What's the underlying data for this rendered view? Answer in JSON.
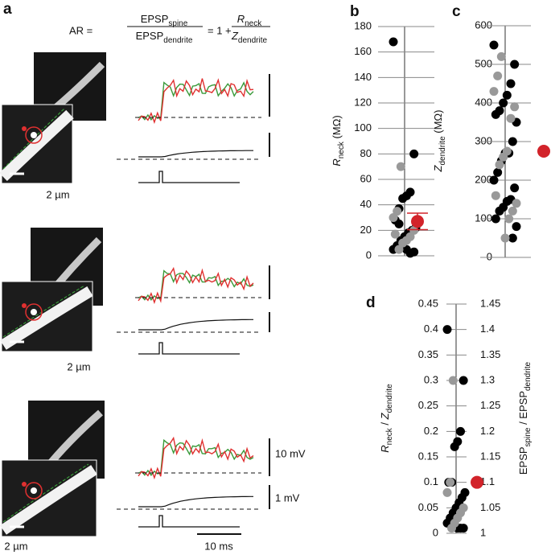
{
  "panel_a": {
    "label": "a",
    "equation": {
      "lhs": "AR =",
      "num1": "EPSP",
      "num1_sub": "spine",
      "den1": "EPSP",
      "den1_sub": "dendrite",
      "mid": "= 1 +",
      "num2": "R",
      "num2_sub": "neck",
      "den2": "Z",
      "den2_sub": "dendrite"
    },
    "scale_labels": [
      "2 µm",
      "2 µm",
      "2 µm"
    ],
    "voltage_bar_1": "10 mV",
    "voltage_bar_2": "1 mV",
    "time_bar": "10 ms"
  },
  "chart_data": [
    {
      "type": "scatter",
      "panel": "b",
      "ylabel": {
        "main": "R",
        "sub": "neck",
        "rest": " (MΩ)"
      },
      "ylim": [
        0,
        180
      ],
      "yticks": [
        0,
        20,
        40,
        60,
        80,
        100,
        120,
        140,
        160,
        180
      ],
      "grid": true,
      "series": [
        {
          "color": "#000000",
          "values": [
            168,
            80,
            50,
            47,
            45,
            37,
            28,
            22,
            20,
            18,
            15,
            12,
            8,
            5,
            3,
            2,
            5,
            10,
            25
          ]
        },
        {
          "color": "#999999",
          "values": [
            70,
            35,
            30,
            20,
            15,
            12,
            10,
            5,
            17
          ]
        },
        {
          "color": "#d2232a",
          "values": [
            27
          ],
          "errors": [
            6.5
          ],
          "mean": true
        }
      ]
    },
    {
      "type": "scatter",
      "panel": "c",
      "ylabel": {
        "main": "Z",
        "sub": "dendrite",
        "rest": " (MΩ)"
      },
      "ylim": [
        0,
        600
      ],
      "yticks": [
        0,
        100,
        200,
        300,
        400,
        500,
        600
      ],
      "grid": true,
      "series": [
        {
          "color": "#000000",
          "values": [
            550,
            500,
            450,
            420,
            400,
            380,
            370,
            350,
            300,
            270,
            270,
            250,
            220,
            200,
            180,
            150,
            145,
            130,
            120,
            100,
            80,
            50
          ]
        },
        {
          "color": "#999999",
          "values": [
            520,
            470,
            430,
            390,
            360,
            275,
            260,
            240,
            160,
            140,
            120,
            100,
            50
          ]
        },
        {
          "color": "#d2232a",
          "values": [
            275
          ],
          "mean": true
        }
      ]
    },
    {
      "type": "scatter",
      "panel": "d",
      "ylabel": {
        "main": "R",
        "sub": "neck",
        "rest": " / ",
        "main2": "Z",
        "sub2": "dendrite"
      },
      "y2label": {
        "main": "EPSP",
        "sub": "spine",
        "rest": " / ",
        "main2": "EPSP",
        "sub2": "dendrite"
      },
      "ylim": [
        0,
        0.45
      ],
      "yticks": [
        0,
        0.05,
        0.1,
        0.15,
        0.2,
        0.25,
        0.3,
        0.35,
        0.4,
        0.45
      ],
      "y2lim": [
        1,
        1.45
      ],
      "y2ticks": [
        1,
        1.05,
        1.1,
        1.15,
        1.2,
        1.25,
        1.3,
        1.35,
        1.4,
        1.45
      ],
      "grid": true,
      "series": [
        {
          "color": "#000000",
          "values": [
            0.4,
            0.3,
            0.2,
            0.18,
            0.17,
            0.1,
            0.1,
            0.08,
            0.07,
            0.06,
            0.05,
            0.04,
            0.03,
            0.02,
            0.01,
            0.01,
            0.01
          ]
        },
        {
          "color": "#999999",
          "values": [
            0.3,
            0.1,
            0.08,
            0.05,
            0.04,
            0.03,
            0.02,
            0.01
          ]
        },
        {
          "color": "#d2232a",
          "values": [
            0.1
          ],
          "mean": true
        }
      ]
    }
  ]
}
